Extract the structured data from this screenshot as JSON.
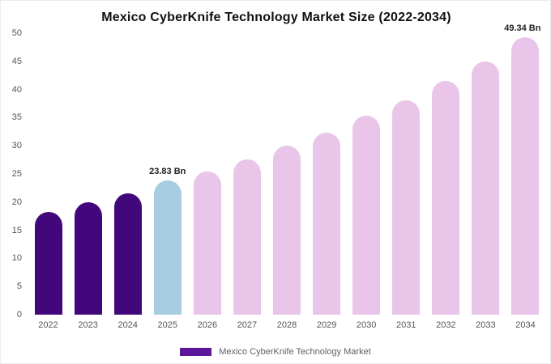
{
  "legend": {
    "label": "Mexico CyberKnife Technology Market",
    "color": "#5b169b"
  },
  "chart_data": {
    "type": "bar",
    "title": "Mexico CyberKnife Technology Market Size (2022-2034)",
    "categories": [
      "2022",
      "2023",
      "2024",
      "2025",
      "2026",
      "2027",
      "2028",
      "2029",
      "2030",
      "2031",
      "2032",
      "2033",
      "2034"
    ],
    "values": [
      18.2,
      20.0,
      21.5,
      23.83,
      25.4,
      27.6,
      30.0,
      32.4,
      35.3,
      38.1,
      41.5,
      45.0,
      49.34
    ],
    "unit": "Bn",
    "xlabel": "",
    "ylabel": "",
    "ylim": [
      0,
      50
    ],
    "ytick_step": 5,
    "grid": false,
    "legend_position": "bottom",
    "colors": {
      "historical": "#42087b",
      "highlight": "#a7cde2",
      "forecast": "#e9c6e9"
    },
    "bar_colors": [
      "#42087b",
      "#42087b",
      "#42087b",
      "#a7cde2",
      "#e9c6e9",
      "#e9c6e9",
      "#e9c6e9",
      "#e9c6e9",
      "#e9c6e9",
      "#e9c6e9",
      "#e9c6e9",
      "#e9c6e9",
      "#e9c6e9"
    ],
    "annotations": [
      {
        "index": 3,
        "text": "23.83 Bn"
      },
      {
        "index": 12,
        "text": "49.34 Bn"
      }
    ]
  }
}
